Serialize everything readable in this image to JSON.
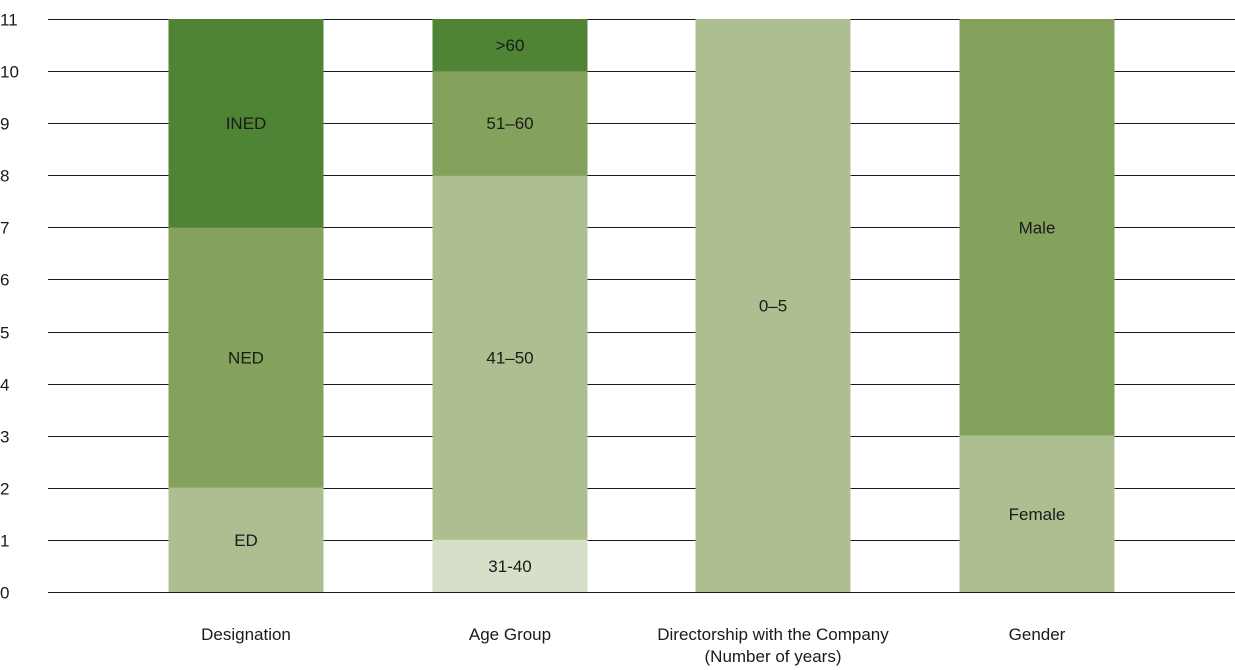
{
  "chart_data": {
    "type": "bar",
    "stacked": true,
    "ylim": [
      0,
      11
    ],
    "yticks": [
      0,
      1,
      2,
      3,
      4,
      5,
      6,
      7,
      8,
      9,
      10,
      11
    ],
    "grid": true,
    "categories": [
      {
        "label_lines": [
          "Designation"
        ],
        "segments": [
          {
            "label": "ED",
            "value": 2,
            "color": "#adbf91"
          },
          {
            "label": "NED",
            "value": 5,
            "color": "#84a25c"
          },
          {
            "label": "INED",
            "value": 4,
            "color": "#4e8434"
          }
        ]
      },
      {
        "label_lines": [
          "Age Group"
        ],
        "segments": [
          {
            "label": "31-40",
            "value": 1,
            "color": "#d8dfc8"
          },
          {
            "label": "41–50",
            "value": 7,
            "color": "#adbf91"
          },
          {
            "label": "51–60",
            "value": 2,
            "color": "#84a25c"
          },
          {
            "label": ">60",
            "value": 1,
            "color": "#4e8434"
          }
        ]
      },
      {
        "label_lines": [
          "Directorship with the Company",
          "(Number of years)"
        ],
        "segments": [
          {
            "label": "0–5",
            "value": 11,
            "color": "#adbf91"
          }
        ]
      },
      {
        "label_lines": [
          "Gender"
        ],
        "segments": [
          {
            "label": "Female",
            "value": 3,
            "color": "#adbf91"
          },
          {
            "label": "Male",
            "value": 8,
            "color": "#84a25c"
          }
        ]
      }
    ]
  }
}
